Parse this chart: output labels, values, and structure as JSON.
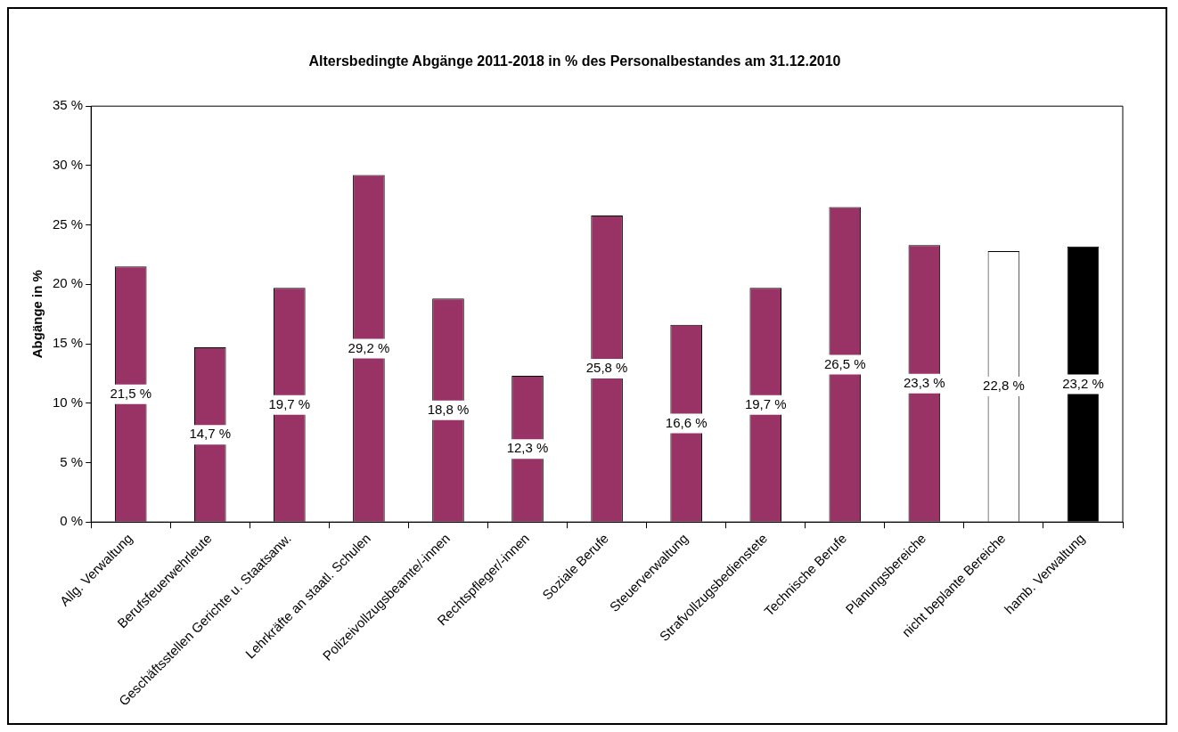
{
  "chart_data": {
    "type": "bar",
    "title": "Altersbedingte Abgänge 2011-2018 in % des Personalbestandes am 31.12.2010",
    "ylabel": "Abgänge in %",
    "categories": [
      "Allg. Verwaltung",
      "Berufsfeuerwehrleute",
      "Geschäftsstellen Gerichte u. Staatsanw.",
      "Lehrkräfte an staatl. Schulen",
      "Polizeivollzugsbeamte/-innen",
      "Rechtspfleger/-innen",
      "Soziale Berufe",
      "Steuerverwaltung",
      "Strafvollzugsbedienstete",
      "Technische Berufe",
      "Planungsbereiche",
      "nicht beplante Bereiche",
      "hamb. Verwaltung"
    ],
    "values": [
      21.5,
      14.7,
      19.7,
      29.2,
      18.8,
      12.3,
      25.8,
      16.6,
      19.7,
      26.5,
      23.3,
      22.8,
      23.2
    ],
    "value_labels": [
      "21,5 %",
      "14,7 %",
      "19,7 %",
      "29,2 %",
      "18,8 %",
      "12,3 %",
      "25,8 %",
      "16,6 %",
      "19,7 %",
      "26,5 %",
      "23,3 %",
      "22,8 %",
      "23,2 %"
    ],
    "colors": [
      "#993366",
      "#993366",
      "#993366",
      "#993366",
      "#993366",
      "#993366",
      "#993366",
      "#993366",
      "#993366",
      "#993366",
      "#993366",
      "#ffffff",
      "#000000"
    ],
    "ylim": [
      0,
      35
    ],
    "yticks": [
      {
        "value": 0,
        "label": "0 %"
      },
      {
        "value": 5,
        "label": "5 %"
      },
      {
        "value": 10,
        "label": "10 %"
      },
      {
        "value": 15,
        "label": "15 %"
      },
      {
        "value": 20,
        "label": "20 %"
      },
      {
        "value": 25,
        "label": "25 %"
      },
      {
        "value": 30,
        "label": "30 %"
      },
      {
        "value": 35,
        "label": "35 %"
      }
    ],
    "grid": false,
    "legend": false
  }
}
